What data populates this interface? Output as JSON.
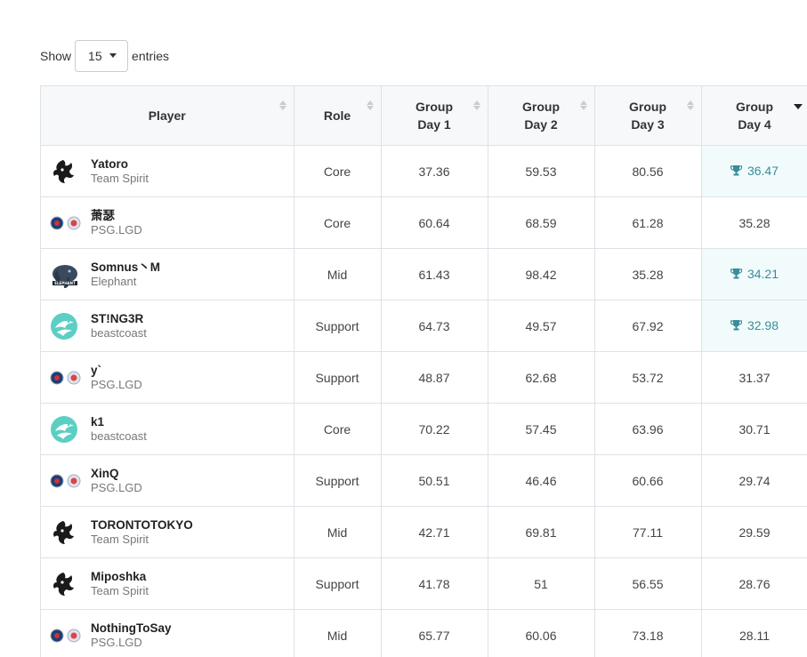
{
  "length_menu": {
    "show_label": "Show",
    "selected": "15",
    "entries_label": "entries"
  },
  "columns": [
    {
      "line1": "Player",
      "line2": ""
    },
    {
      "line1": "Role",
      "line2": ""
    },
    {
      "line1": "Group",
      "line2": "Day 1"
    },
    {
      "line1": "Group",
      "line2": "Day 2"
    },
    {
      "line1": "Group",
      "line2": "Day 3"
    },
    {
      "line1": "Group",
      "line2": "Day 4"
    }
  ],
  "sorted_column": "Group Day 4",
  "sort_direction": "descending",
  "highlight_color": "#3a8c9b",
  "rows": [
    {
      "player": "Yatoro",
      "team": "Team Spirit",
      "logo": "spirit-logo-icon",
      "role": "Core",
      "d1": "37.36",
      "d2": "59.53",
      "d3": "80.56",
      "d4": "36.47",
      "d4_top": true
    },
    {
      "player": "萧瑟",
      "team": "PSG.LGD",
      "logo": "psg-lgd-logo-icon",
      "role": "Core",
      "d1": "60.64",
      "d2": "68.59",
      "d3": "61.28",
      "d4": "35.28",
      "d4_top": false
    },
    {
      "player": "Somnus丶M",
      "team": "Elephant",
      "logo": "elephant-logo-icon",
      "role": "Mid",
      "d1": "61.43",
      "d2": "98.42",
      "d3": "35.28",
      "d4": "34.21",
      "d4_top": true
    },
    {
      "player": "ST!NG3R",
      "team": "beastcoast",
      "logo": "beastcoast-logo-icon",
      "role": "Support",
      "d1": "64.73",
      "d2": "49.57",
      "d3": "67.92",
      "d4": "32.98",
      "d4_top": true
    },
    {
      "player": "y`",
      "team": "PSG.LGD",
      "logo": "psg-lgd-logo-icon",
      "role": "Support",
      "d1": "48.87",
      "d2": "62.68",
      "d3": "53.72",
      "d4": "31.37",
      "d4_top": false
    },
    {
      "player": "k1",
      "team": "beastcoast",
      "logo": "beastcoast-logo-icon",
      "role": "Core",
      "d1": "70.22",
      "d2": "57.45",
      "d3": "63.96",
      "d4": "30.71",
      "d4_top": false
    },
    {
      "player": "XinQ",
      "team": "PSG.LGD",
      "logo": "psg-lgd-logo-icon",
      "role": "Support",
      "d1": "50.51",
      "d2": "46.46",
      "d3": "60.66",
      "d4": "29.74",
      "d4_top": false
    },
    {
      "player": "TORONTOTOKYO",
      "team": "Team Spirit",
      "logo": "spirit-logo-icon",
      "role": "Mid",
      "d1": "42.71",
      "d2": "69.81",
      "d3": "77.11",
      "d4": "29.59",
      "d4_top": false
    },
    {
      "player": "Miposhka",
      "team": "Team Spirit",
      "logo": "spirit-logo-icon",
      "role": "Support",
      "d1": "41.78",
      "d2": "51",
      "d3": "56.55",
      "d4": "28.76",
      "d4_top": false
    },
    {
      "player": "NothingToSay",
      "team": "PSG.LGD",
      "logo": "psg-lgd-logo-icon",
      "role": "Mid",
      "d1": "65.77",
      "d2": "60.06",
      "d3": "73.18",
      "d4": "28.11",
      "d4_top": false
    }
  ]
}
